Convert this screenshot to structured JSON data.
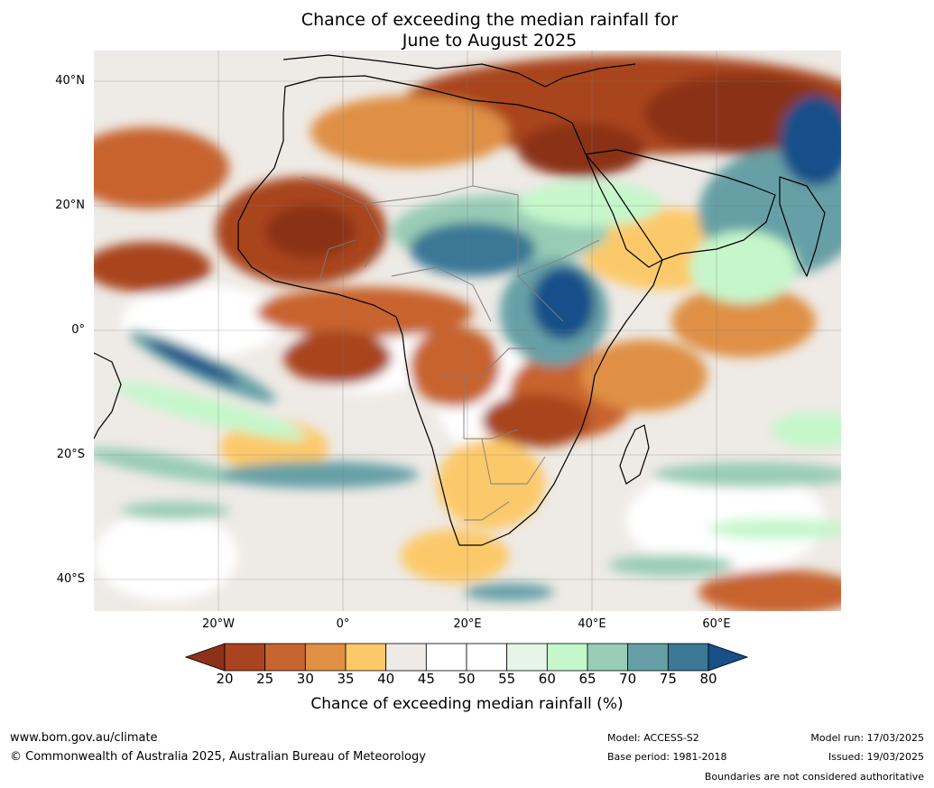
{
  "title": {
    "line1": "Chance of exceeding the median rainfall for",
    "line2": "June to August 2025"
  },
  "map": {
    "region": "Africa",
    "lat_labels": [
      "40°N",
      "20°N",
      "0°",
      "20°S",
      "40°S"
    ],
    "lon_labels": [
      "20°W",
      "0°",
      "20°E",
      "40°E",
      "60°E"
    ],
    "background_color": "#eeeae5"
  },
  "colorbar": {
    "ticks": [
      "20",
      "25",
      "30",
      "35",
      "40",
      "45",
      "50",
      "55",
      "60",
      "65",
      "70",
      "75",
      "80"
    ],
    "colors": [
      "#8b3219",
      "#a9441f",
      "#c8642f",
      "#df9044",
      "#fcc96a",
      "#eeeae5",
      "#ffffff",
      "#ffffff",
      "#e6f5e7",
      "#c5f7cb",
      "#98ccb6",
      "#66a0a6",
      "#3b7896",
      "#184f89"
    ],
    "label": "Chance of exceeding median rainfall (%)"
  },
  "footer": {
    "site": "www.bom.gov.au/climate",
    "copyright": "© Commonwealth of Australia 2025, Australian Bureau of Meteorology",
    "model": "Model: ACCESS-S2",
    "base_period": "Base period: 1981-2018",
    "model_run": "Model run: 17/03/2025",
    "issued": "Issued: 19/03/2025",
    "disclaimer": "Boundaries are not considered authoritative"
  }
}
